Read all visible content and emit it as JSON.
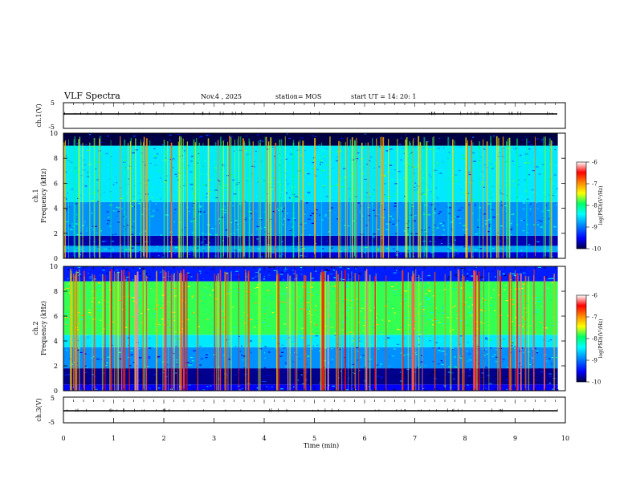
{
  "header": {
    "title": "VLF Spectra",
    "date": "Nov.4 , 2025",
    "station": "station= MOS",
    "start": "start UT = 14: 20: 1"
  },
  "chart_data": [
    {
      "type": "line",
      "panel": "ch1-waveform",
      "ylabel": "ch.1(V)",
      "ylim": [
        -5,
        5
      ],
      "yticks": [
        "5",
        "-5"
      ],
      "series": [
        {
          "values": [
            {
              "x": 0,
              "y": 0
            },
            {
              "x": 9.85,
              "y": 0
            }
          ]
        }
      ]
    },
    {
      "type": "heatmap",
      "panel": "ch1-spectrogram",
      "ylabel": "ch.1",
      "ylabel2": "Frequency (kHz)",
      "xlim": [
        0,
        10
      ],
      "ylim": [
        0,
        10
      ],
      "yticks": [
        "0",
        "2",
        "4",
        "6",
        "8",
        "10"
      ],
      "data_extent_min": 9.85,
      "bands_khz": [
        {
          "range": [
            0,
            0.5
          ],
          "level": -9.6
        },
        {
          "range": [
            0.5,
            1.0
          ],
          "level": -8.9
        },
        {
          "range": [
            1.0,
            1.8
          ],
          "level": -9.7
        },
        {
          "range": [
            1.8,
            4.5
          ],
          "level": -9.0
        },
        {
          "range": [
            4.5,
            9.0
          ],
          "level": -8.6
        },
        {
          "range": [
            9.0,
            10
          ],
          "level": -10
        }
      ],
      "colorbar": {
        "label": "log(PSD)(V²/Hz)",
        "ticks": [
          "-6",
          "-7",
          "-8",
          "-9",
          "-10"
        ],
        "range": [
          -10,
          -6
        ]
      }
    },
    {
      "type": "heatmap",
      "panel": "ch2-spectrogram",
      "ylabel": "ch.2",
      "ylabel2": "Frequency (kHz)",
      "xlim": [
        0,
        10
      ],
      "ylim": [
        0,
        10
      ],
      "yticks": [
        "0",
        "2",
        "4",
        "6",
        "8",
        "10"
      ],
      "data_extent_min": 9.85,
      "bands_khz": [
        {
          "range": [
            0,
            0.5
          ],
          "level": -9.5
        },
        {
          "range": [
            0.5,
            1.8
          ],
          "level": -9.8
        },
        {
          "range": [
            1.8,
            3.5
          ],
          "level": -9.0
        },
        {
          "range": [
            3.5,
            4.5
          ],
          "level": -8.6
        },
        {
          "range": [
            4.5,
            8.8
          ],
          "level": -7.9
        },
        {
          "range": [
            8.8,
            10
          ],
          "level": -9.4
        }
      ],
      "colorbar": {
        "label": "log(PSD)(V²/Hz)",
        "ticks": [
          "-6",
          "-7",
          "-8",
          "-9",
          "-10"
        ],
        "range": [
          -10,
          -6
        ]
      }
    },
    {
      "type": "line",
      "panel": "ch3-waveform",
      "ylabel": "ch.3(V)",
      "xlabel": "Time (min)",
      "xlim": [
        0,
        10
      ],
      "ylim": [
        -5,
        5
      ],
      "xticks": [
        "0",
        "1",
        "2",
        "3",
        "4",
        "5",
        "6",
        "7",
        "8",
        "9",
        "10"
      ],
      "yticks": [
        "5",
        "-5"
      ],
      "series": [
        {
          "values": [
            {
              "x": 0,
              "y": 0
            },
            {
              "x": 9.85,
              "y": 0
            }
          ]
        }
      ]
    }
  ],
  "colors": {
    "colormap": [
      "#000044",
      "#0000ff",
      "#0090ff",
      "#00ffff",
      "#00ff66",
      "#ffff00",
      "#ff8800",
      "#ff0000",
      "#ffffff"
    ]
  }
}
